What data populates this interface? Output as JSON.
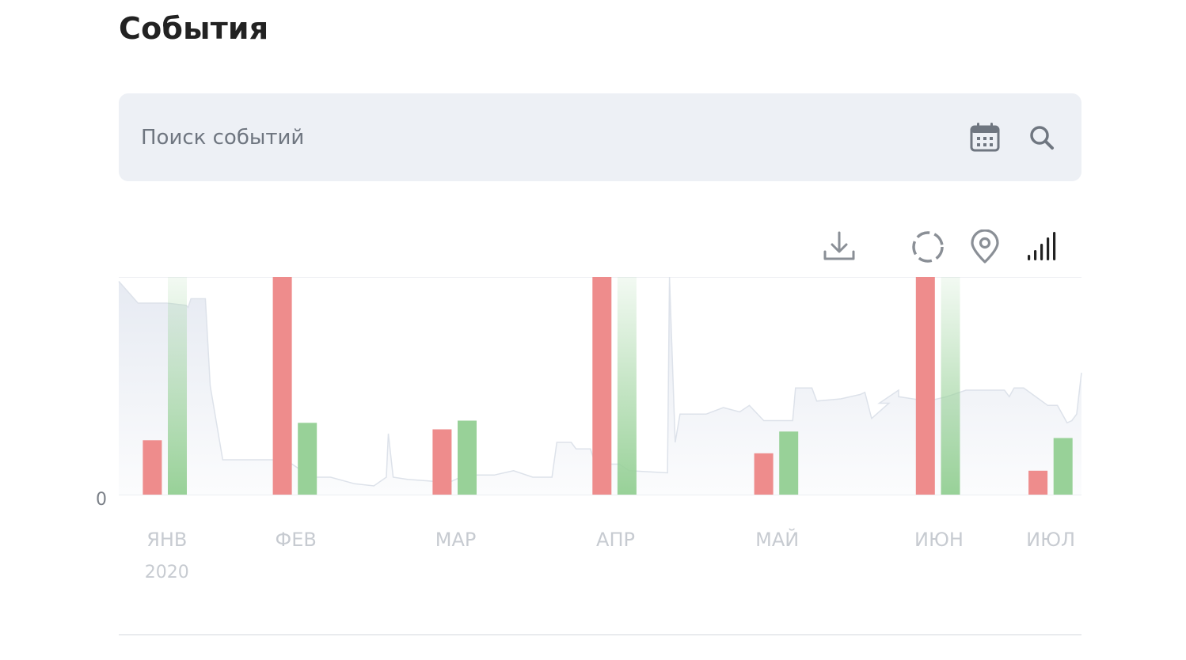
{
  "page": {
    "title": "События"
  },
  "search": {
    "placeholder": "Поиск событий"
  },
  "icons": {
    "calendar": "calendar-icon",
    "search": "search-icon",
    "download": "download-icon",
    "range": "dashed-circle-icon",
    "location": "map-pin-icon",
    "signal": "signal-bars-icon"
  },
  "colors": {
    "negative": "#ee8c8c",
    "positive": "#98d198",
    "area": "#e6eaf2",
    "axis_label": "#c7cbd1",
    "zero_label": "#7b8088"
  },
  "chart_data": {
    "type": "bar",
    "ylim": [
      0,
      100
    ],
    "y_tick_labels": [
      "0"
    ],
    "x_labels": [
      {
        "label": "ЯНВ",
        "sub": "2020",
        "pos": 0.05
      },
      {
        "label": "ФЕВ",
        "sub": "",
        "pos": 0.184
      },
      {
        "label": "МАР",
        "sub": "",
        "pos": 0.35
      },
      {
        "label": "АПР",
        "sub": "",
        "pos": 0.516
      },
      {
        "label": "МАЙ",
        "sub": "",
        "pos": 0.684
      },
      {
        "label": "ИЮН",
        "sub": "",
        "pos": 0.852
      },
      {
        "label": "ИЮЛ",
        "sub": "",
        "pos": 0.968
      }
    ],
    "bars": [
      {
        "x": 0.025,
        "series": "negative",
        "value": 25
      },
      {
        "x": 0.051,
        "series": "positive",
        "value": 100,
        "faded": true
      },
      {
        "x": 0.16,
        "series": "negative",
        "value": 100
      },
      {
        "x": 0.186,
        "series": "positive",
        "value": 33
      },
      {
        "x": 0.326,
        "series": "negative",
        "value": 30
      },
      {
        "x": 0.352,
        "series": "positive",
        "value": 34
      },
      {
        "x": 0.492,
        "series": "negative",
        "value": 100
      },
      {
        "x": 0.518,
        "series": "positive",
        "value": 100,
        "faded": true
      },
      {
        "x": 0.66,
        "series": "negative",
        "value": 19
      },
      {
        "x": 0.686,
        "series": "positive",
        "value": 29
      },
      {
        "x": 0.828,
        "series": "negative",
        "value": 100
      },
      {
        "x": 0.854,
        "series": "positive",
        "value": 100,
        "faded": true
      },
      {
        "x": 0.945,
        "series": "negative",
        "value": 11
      },
      {
        "x": 0.971,
        "series": "positive",
        "value": 26
      }
    ],
    "background_line": [
      [
        0.0,
        98
      ],
      [
        0.02,
        88
      ],
      [
        0.05,
        88
      ],
      [
        0.07,
        87
      ],
      [
        0.072,
        86
      ],
      [
        0.075,
        90
      ],
      [
        0.09,
        90
      ],
      [
        0.095,
        50
      ],
      [
        0.108,
        16
      ],
      [
        0.115,
        16
      ],
      [
        0.16,
        16
      ],
      [
        0.18,
        14
      ],
      [
        0.2,
        8
      ],
      [
        0.22,
        8
      ],
      [
        0.245,
        5
      ],
      [
        0.265,
        4
      ],
      [
        0.278,
        8
      ],
      [
        0.28,
        28
      ],
      [
        0.285,
        8
      ],
      [
        0.3,
        7
      ],
      [
        0.33,
        6
      ],
      [
        0.345,
        6
      ],
      [
        0.36,
        9
      ],
      [
        0.38,
        9
      ],
      [
        0.39,
        9
      ],
      [
        0.41,
        11
      ],
      [
        0.43,
        8
      ],
      [
        0.45,
        8
      ],
      [
        0.455,
        24
      ],
      [
        0.47,
        24
      ],
      [
        0.475,
        21
      ],
      [
        0.49,
        21
      ],
      [
        0.495,
        14
      ],
      [
        0.52,
        14
      ],
      [
        0.53,
        11
      ],
      [
        0.57,
        10
      ],
      [
        0.572,
        100
      ],
      [
        0.578,
        24
      ],
      [
        0.583,
        37
      ],
      [
        0.595,
        37
      ],
      [
        0.61,
        37
      ],
      [
        0.628,
        40
      ],
      [
        0.645,
        38
      ],
      [
        0.655,
        41
      ],
      [
        0.67,
        34
      ],
      [
        0.7,
        34
      ],
      [
        0.703,
        49
      ],
      [
        0.72,
        49
      ],
      [
        0.725,
        43
      ],
      [
        0.75,
        44
      ],
      [
        0.77,
        46
      ],
      [
        0.775,
        47
      ],
      [
        0.782,
        35
      ],
      [
        0.8,
        42
      ],
      [
        0.79,
        42
      ],
      [
        0.81,
        48
      ],
      [
        0.81,
        45
      ],
      [
        0.84,
        43
      ],
      [
        0.86,
        45
      ],
      [
        0.88,
        48
      ],
      [
        0.92,
        48
      ],
      [
        0.925,
        45
      ],
      [
        0.93,
        49
      ],
      [
        0.94,
        49
      ],
      [
        0.965,
        41
      ],
      [
        0.975,
        41
      ],
      [
        0.985,
        33
      ],
      [
        0.99,
        34
      ],
      [
        0.995,
        37
      ],
      [
        1.0,
        56
      ]
    ]
  }
}
